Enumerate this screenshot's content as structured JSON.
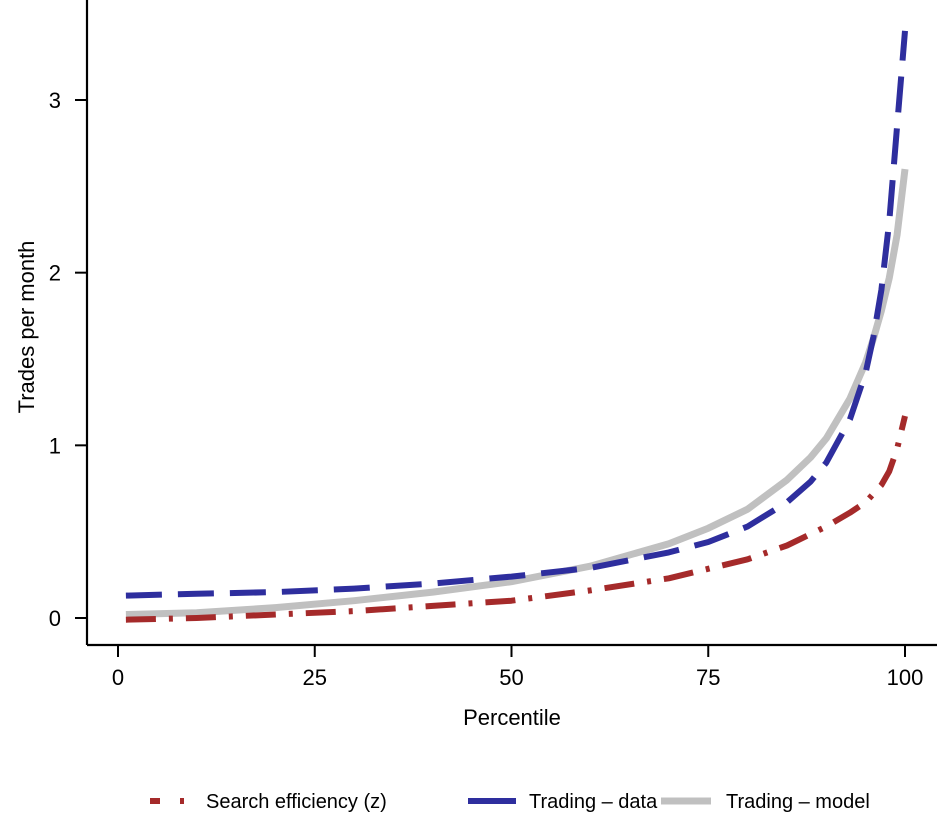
{
  "chart_data": {
    "type": "line",
    "xlabel": "Percentile",
    "ylabel": "Trades per month",
    "xlim": [
      -2,
      104
    ],
    "ylim": [
      -0.15,
      3.55
    ],
    "xticks": [
      0,
      25,
      50,
      75,
      100
    ],
    "xtick_labels": [
      "0",
      "25",
      "50",
      "75",
      "100"
    ],
    "yticks": [
      0,
      1,
      2,
      3
    ],
    "ytick_labels": [
      "0",
      "1",
      "2",
      "3"
    ],
    "grid": false,
    "legend_position": "bottom",
    "series": [
      {
        "name": "Search efficiency (z)",
        "color": "#a52a2a",
        "style": "dashdot",
        "x": [
          1,
          10,
          20,
          30,
          40,
          50,
          60,
          70,
          80,
          85,
          90,
          93,
          95,
          97,
          98,
          99,
          100
        ],
        "y": [
          -0.01,
          0.0,
          0.02,
          0.04,
          0.07,
          0.1,
          0.16,
          0.23,
          0.34,
          0.42,
          0.53,
          0.61,
          0.67,
          0.77,
          0.85,
          0.98,
          1.17
        ]
      },
      {
        "name": "Trading – data",
        "color": "#2e2e9e",
        "style": "dashed",
        "x": [
          1,
          10,
          20,
          30,
          40,
          50,
          60,
          70,
          75,
          80,
          85,
          88,
          90,
          93,
          95,
          96,
          97,
          98,
          99,
          100
        ],
        "y": [
          0.13,
          0.14,
          0.15,
          0.17,
          0.2,
          0.24,
          0.29,
          0.38,
          0.44,
          0.53,
          0.67,
          0.79,
          0.9,
          1.15,
          1.42,
          1.63,
          1.9,
          2.3,
          2.85,
          3.4
        ]
      },
      {
        "name": "Trading – model",
        "color": "#c0c0c0",
        "style": "solid",
        "x": [
          1,
          10,
          20,
          30,
          40,
          50,
          60,
          70,
          75,
          80,
          85,
          88,
          90,
          93,
          95,
          96,
          97,
          98,
          99,
          100
        ],
        "y": [
          0.02,
          0.03,
          0.06,
          0.1,
          0.15,
          0.21,
          0.3,
          0.43,
          0.52,
          0.63,
          0.8,
          0.93,
          1.04,
          1.27,
          1.48,
          1.62,
          1.78,
          1.97,
          2.22,
          2.6
        ]
      }
    ]
  }
}
